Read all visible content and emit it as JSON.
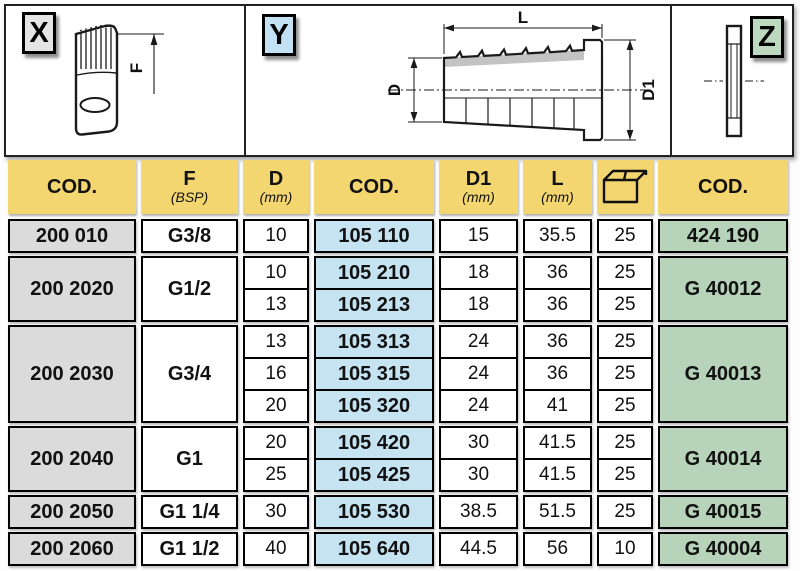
{
  "panels": {
    "x": {
      "label": "X",
      "dim_f": "F"
    },
    "y": {
      "label": "Y",
      "dim_l": "L",
      "dim_d": "D",
      "dim_d1": "D1"
    },
    "z": {
      "label": "Z"
    }
  },
  "table": {
    "headers": [
      {
        "main": "COD.",
        "sub": ""
      },
      {
        "main": "F",
        "sub": "(BSP)"
      },
      {
        "main": "D",
        "sub": "(mm)"
      },
      {
        "main": "COD.",
        "sub": ""
      },
      {
        "main": "D1",
        "sub": "(mm)"
      },
      {
        "main": "L",
        "sub": "(mm)"
      },
      {
        "main": "",
        "sub": "",
        "icon": "box"
      },
      {
        "main": "COD.",
        "sub": ""
      }
    ],
    "groups": [
      {
        "cod1": "200 010",
        "f": "G3/8",
        "rows": [
          {
            "d": "10",
            "cod2": "105 110",
            "d1": "15",
            "l": "35.5",
            "qty": "25"
          }
        ],
        "cod3": "424 190"
      },
      {
        "cod1": "200 2020",
        "f": "G1/2",
        "rows": [
          {
            "d": "10",
            "cod2": "105 210",
            "d1": "18",
            "l": "36",
            "qty": "25"
          },
          {
            "d": "13",
            "cod2": "105 213",
            "d1": "18",
            "l": "36",
            "qty": "25"
          }
        ],
        "cod3": "G 40012"
      },
      {
        "cod1": "200 2030",
        "f": "G3/4",
        "rows": [
          {
            "d": "13",
            "cod2": "105 313",
            "d1": "24",
            "l": "36",
            "qty": "25"
          },
          {
            "d": "16",
            "cod2": "105 315",
            "d1": "24",
            "l": "36",
            "qty": "25"
          },
          {
            "d": "20",
            "cod2": "105 320",
            "d1": "24",
            "l": "41",
            "qty": "25"
          }
        ],
        "cod3": "G 40013"
      },
      {
        "cod1": "200 2040",
        "f": "G1",
        "rows": [
          {
            "d": "20",
            "cod2": "105 420",
            "d1": "30",
            "l": "41.5",
            "qty": "25"
          },
          {
            "d": "25",
            "cod2": "105 425",
            "d1": "30",
            "l": "41.5",
            "qty": "25"
          }
        ],
        "cod3": "G 40014"
      },
      {
        "cod1": "200 2050",
        "f": "G1 1/4",
        "rows": [
          {
            "d": "30",
            "cod2": "105 530",
            "d1": "38.5",
            "l": "51.5",
            "qty": "25"
          }
        ],
        "cod3": "G 40015"
      },
      {
        "cod1": "200 2060",
        "f": "G1 1/2",
        "rows": [
          {
            "d": "40",
            "cod2": "105 640",
            "d1": "44.5",
            "l": "56",
            "qty": "10"
          }
        ],
        "cod3": "G 40004"
      }
    ]
  },
  "colors": {
    "header_bg": "#F3D66F",
    "gray_cell": "#DBDBDB",
    "blue_cell": "#C6E3F2",
    "green_cell": "#B7D3B9",
    "x_label_bg": "#E4E4E4",
    "y_label_bg": "#C2E2F4",
    "z_label_bg": "#BCD8BE",
    "border": "#000000"
  }
}
